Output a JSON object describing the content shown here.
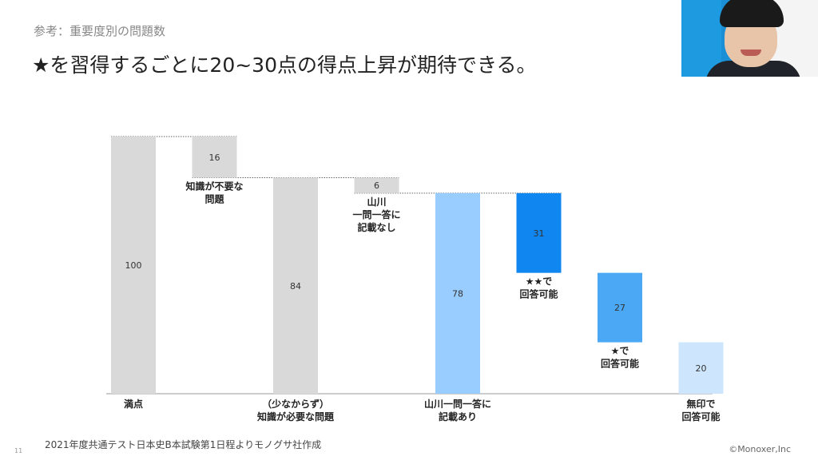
{
  "slide": {
    "breadcrumb": "参考：重要度別の問題数",
    "headline": "★を習得するごとに20~30点の得点上昇が期待できる。",
    "footnote": "2021年度共通テスト日本史B本試験第1日程よりモノグサ社作成",
    "page_number": "11",
    "copyright": "©Monoxer,Inc"
  },
  "webcam": {
    "description_icon": "presenter-webcam"
  },
  "chart_data": {
    "type": "bar",
    "title": "",
    "xlabel": "",
    "ylabel": "",
    "ylim": [
      0,
      100
    ],
    "grid": false,
    "legend": "none",
    "bars": [
      {
        "value": 100,
        "base": 0,
        "label": "100",
        "color": "#d9d9d9",
        "label_text": [
          "満点"
        ],
        "label_position": "bottom"
      },
      {
        "value": 16,
        "base": 84,
        "label": "16",
        "color": "#d9d9d9",
        "label_text": [
          "知識が不要な",
          "問題"
        ],
        "label_position": "below"
      },
      {
        "value": 84,
        "base": 0,
        "label": "84",
        "color": "#d9d9d9",
        "label_text": [
          "（少なからず）",
          "知識が必要な問題"
        ],
        "label_position": "bottom"
      },
      {
        "value": 6,
        "base": 78,
        "label": "6",
        "color": "#d9d9d9",
        "label_text": [
          "山川",
          "一問一答に",
          "記載なし"
        ],
        "label_position": "below"
      },
      {
        "value": 78,
        "base": 0,
        "label": "78",
        "color": "#99ccff",
        "label_text": [
          "山川一問一答に",
          "記載あり"
        ],
        "label_position": "bottom"
      },
      {
        "value": 31,
        "base": 47,
        "label": "31",
        "color": "#0f86f0",
        "label_text": [
          "★★で",
          "回答可能"
        ],
        "label_position": "below"
      },
      {
        "value": 27,
        "base": 20,
        "label": "27",
        "color": "#4aa8f5",
        "label_text": [
          "★で",
          "回答可能"
        ],
        "label_position": "below"
      },
      {
        "value": 20,
        "base": 0,
        "label": "20",
        "color": "#cde6fd",
        "label_text": [
          "無印で",
          "回答可能"
        ],
        "label_position": "bottom"
      }
    ],
    "connectors": [
      {
        "at": 100,
        "from_bar": 0,
        "to_bar": 1
      },
      {
        "at": 84,
        "from_bar": 1,
        "to_bar": 3
      },
      {
        "at": 78,
        "from_bar": 3,
        "to_bar": 5
      }
    ]
  }
}
